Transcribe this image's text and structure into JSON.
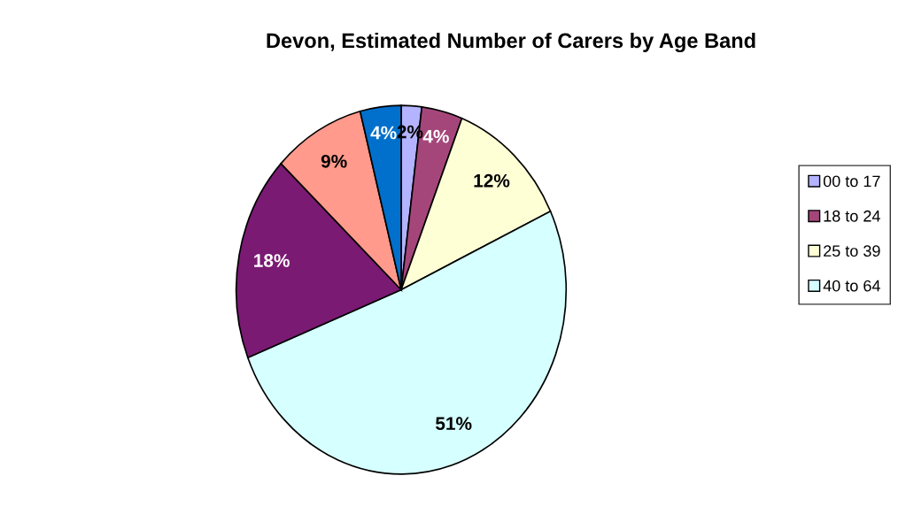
{
  "chart_data": {
    "type": "pie",
    "title": "Devon, Estimated Number of Carers by Age Band",
    "categories": [
      "00 to 17",
      "18 to 24",
      "25 to 39",
      "40 to 64",
      null,
      null,
      null
    ],
    "values": [
      2,
      4,
      12,
      51,
      18,
      9,
      4
    ],
    "colors": [
      "#b3b3ff",
      "#a5467a",
      "#ffffd6",
      "#d6ffff",
      "#7a1a73",
      "#ff9a8c",
      "#0070cc"
    ],
    "value_labels": [
      "2%",
      "4%",
      "12%",
      "51%",
      "18%",
      "9%",
      "4%"
    ],
    "legend": "right"
  }
}
